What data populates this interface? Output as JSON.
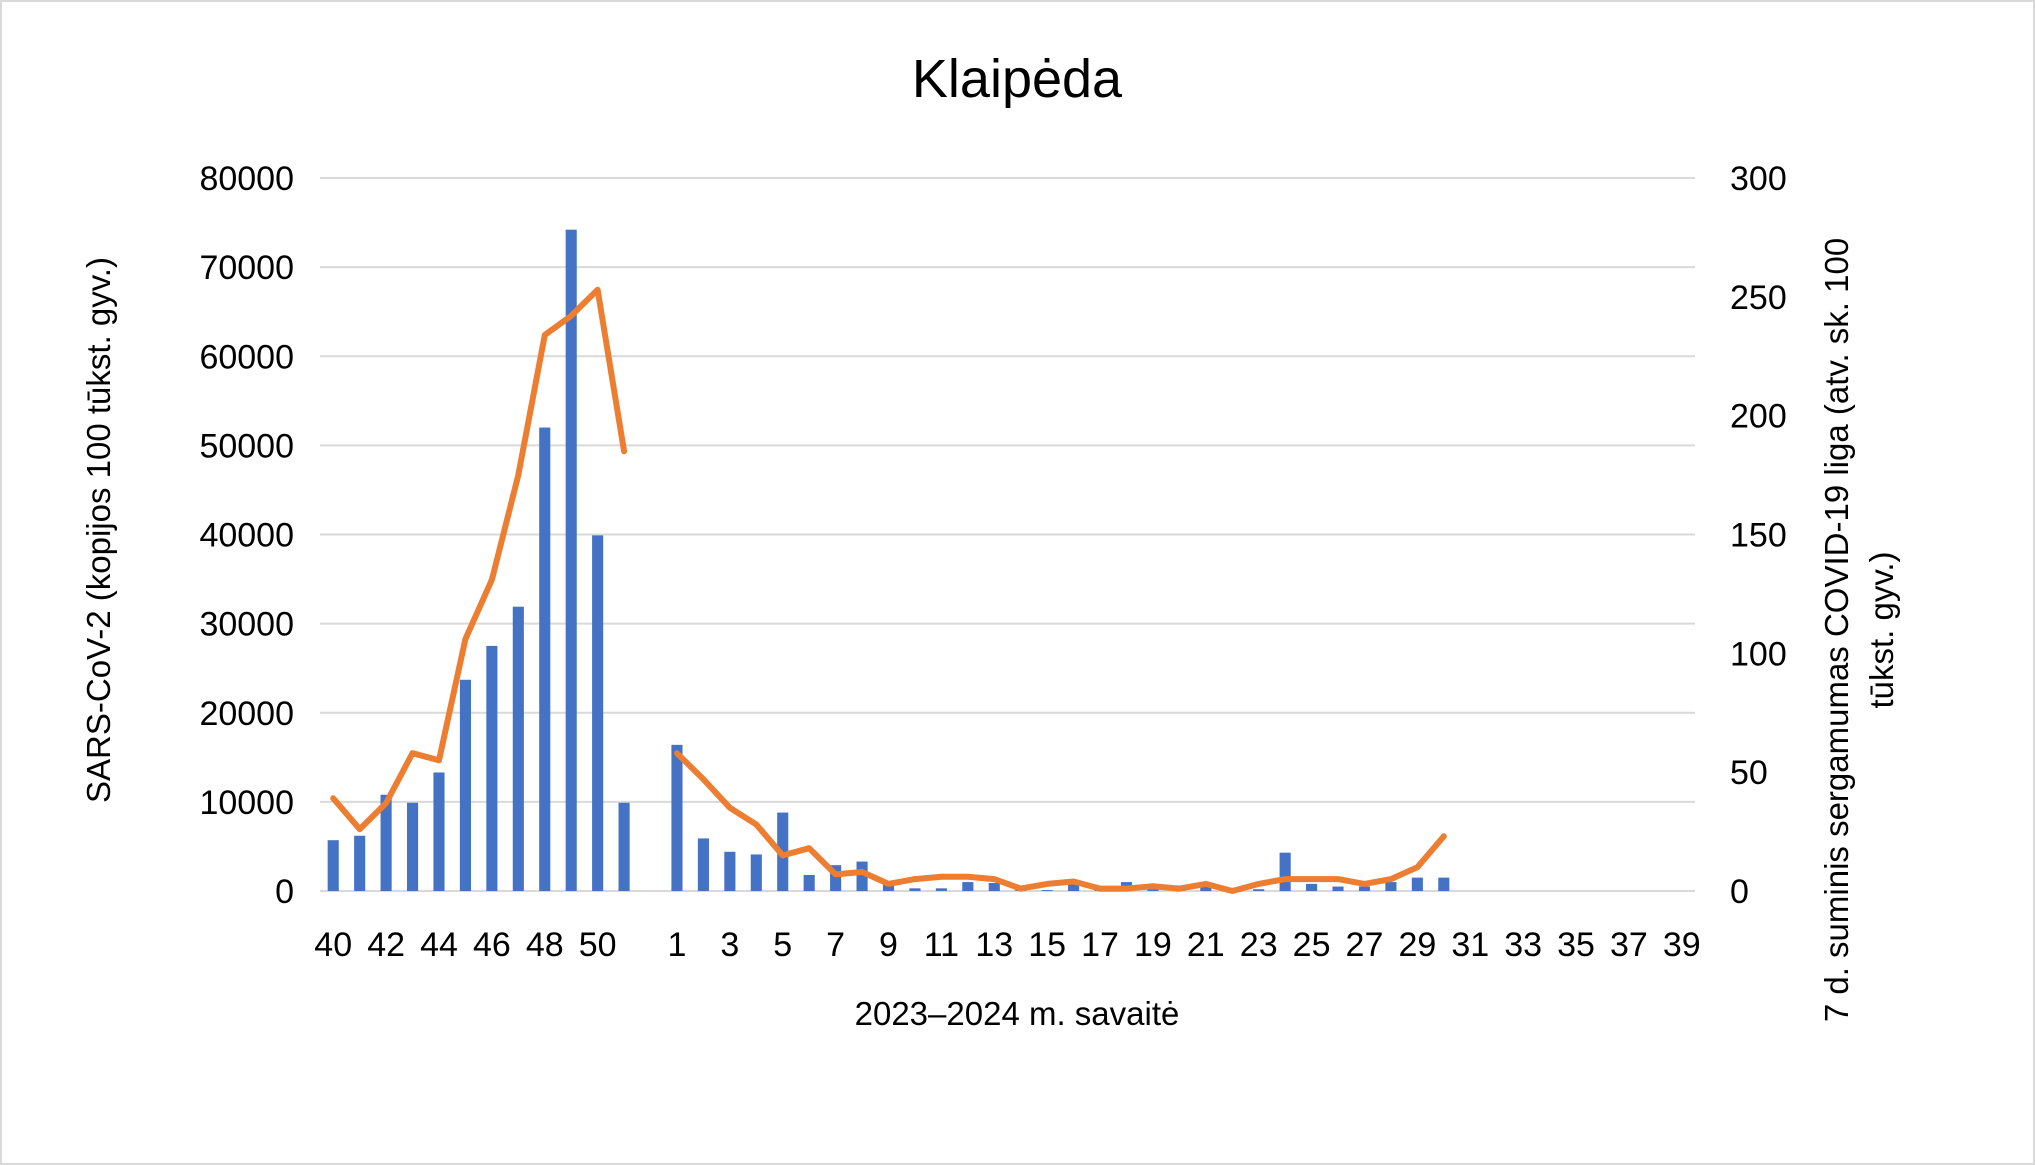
{
  "chart_data": {
    "type": "bar+line",
    "title": "Klaipėda",
    "xlabel": "2023–2024 m. savaitė",
    "ylabel_left": "SARS-CoV-2  (kopijos 100 tūkst. gyv.)",
    "ylabel_right_lines": [
      "7 d. suminis sergamumas COVID-19 liga (atv. sk. 100",
      "tūkst. gyv.)"
    ],
    "ylim_left": [
      0,
      80000
    ],
    "ylim_right": [
      0,
      300
    ],
    "yticks_left": [
      0,
      10000,
      20000,
      30000,
      40000,
      50000,
      60000,
      70000,
      80000
    ],
    "yticks_right": [
      0,
      50,
      100,
      150,
      200,
      250,
      300
    ],
    "grid": true,
    "legend": "none",
    "colors": {
      "bars": "#4472C4",
      "line": "#ED7D31",
      "grid": "#D9D9D9"
    },
    "categories": [
      "40",
      "41",
      "42",
      "43",
      "44",
      "45",
      "46",
      "47",
      "48",
      "49",
      "50",
      "51",
      "52",
      "1",
      "2",
      "3",
      "4",
      "5",
      "6",
      "7",
      "8",
      "9",
      "10",
      "11",
      "12",
      "13",
      "14",
      "15",
      "16",
      "17",
      "18",
      "19",
      "20",
      "21",
      "22",
      "23",
      "24",
      "25",
      "26",
      "27",
      "28",
      "29",
      "30",
      "31",
      "32",
      "33",
      "34",
      "35",
      "36",
      "37",
      "38",
      "39"
    ],
    "tick_labels": [
      "40",
      "42",
      "44",
      "46",
      "48",
      "50",
      "1",
      "3",
      "5",
      "7",
      "9",
      "11",
      "13",
      "15",
      "17",
      "19",
      "21",
      "23",
      "25",
      "27",
      "29",
      "31",
      "33",
      "35",
      "37",
      "39"
    ],
    "series": [
      {
        "axis": "left",
        "type": "bar",
        "values": [
          5700,
          6200,
          10800,
          9900,
          13300,
          23700,
          27500,
          31900,
          52000,
          74200,
          39900,
          9900,
          null,
          16400,
          5900,
          4400,
          4100,
          8800,
          1800,
          2900,
          3300,
          1000,
          300,
          300,
          1000,
          900,
          100,
          100,
          1100,
          400,
          1000,
          200,
          200,
          800,
          300,
          200,
          4300,
          800,
          500,
          500,
          1000,
          1500,
          1500,
          null,
          null,
          null,
          null,
          null,
          null,
          null,
          null,
          null
        ]
      },
      {
        "axis": "right",
        "type": "line",
        "values": [
          39,
          26,
          37,
          58,
          55,
          106,
          131,
          175,
          234,
          242,
          253,
          185,
          null,
          58,
          47,
          35,
          28,
          15,
          18,
          7,
          8,
          3,
          5,
          6,
          6,
          5,
          1,
          3,
          4,
          1,
          1,
          2,
          1,
          3,
          0,
          3,
          5,
          5,
          5,
          3,
          5,
          10,
          23,
          null,
          null,
          null,
          null,
          null,
          null,
          null,
          null,
          null
        ]
      }
    ]
  }
}
